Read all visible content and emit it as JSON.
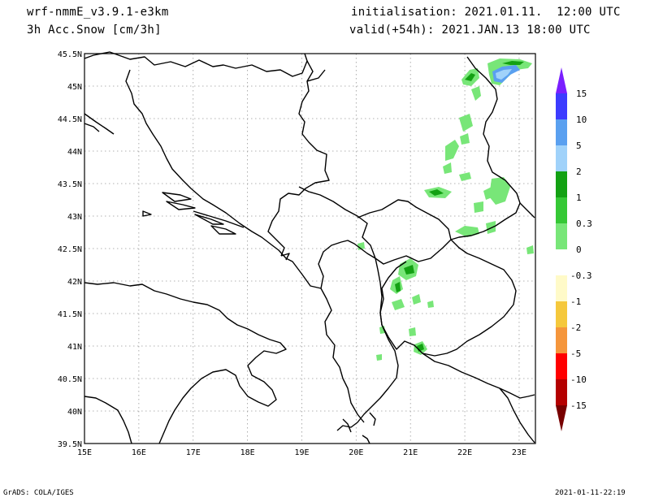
{
  "header": {
    "model": "wrf-nmmE_v3.9.1-e3km",
    "field": "3h Acc.Snow [cm/3h]",
    "init": "initialisation: 2021.01.11.  12:00 UTC",
    "valid": "valid(+54h): 2021.JAN.13 18:00 UTC"
  },
  "axes": {
    "lon_labels": [
      "15E",
      "16E",
      "17E",
      "18E",
      "19E",
      "20E",
      "21E",
      "22E",
      "23E"
    ],
    "lat_labels": [
      "45.5N",
      "45N",
      "44.5N",
      "44N",
      "43.5N",
      "43N",
      "42.5N",
      "42N",
      "41.5N",
      "41N",
      "40.5N",
      "40N",
      "39.5N"
    ],
    "lon_range": [
      15,
      23.3
    ],
    "lat_range": [
      39.5,
      45.5
    ]
  },
  "colorbar": {
    "labels": [
      "15",
      "10",
      "5",
      "2",
      "1",
      "0.3",
      "0",
      "-0.3",
      "-1",
      "-2",
      "-5",
      "-10",
      "-15"
    ],
    "colors": [
      "#7a1fff",
      "#3c3cff",
      "#5aa0f0",
      "#a0d2fa",
      "#13a113",
      "#35c835",
      "#78e678",
      "#ffffff",
      "#fffac8",
      "#f5c83c",
      "#f5963c",
      "#ff0000",
      "#b40000",
      "#780000"
    ]
  },
  "footer": {
    "left": "GrADS: COLA/IGES",
    "right": "2021-01-11-22:19"
  }
}
